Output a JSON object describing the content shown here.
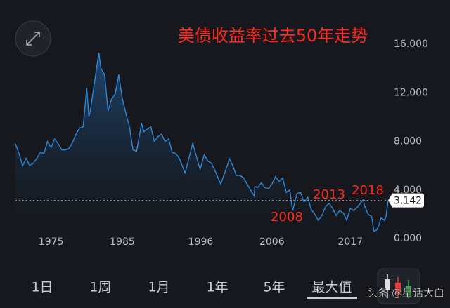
{
  "chart_data": {
    "type": "area",
    "title": "美债收益率过去50年走势",
    "color": "#2f86d6",
    "grid": false,
    "x": [
      1970,
      1970.5,
      1971,
      1971.5,
      1972,
      1972.5,
      1973,
      1973.5,
      1974,
      1974.5,
      1975,
      1975.5,
      1976,
      1976.5,
      1977,
      1977.5,
      1978,
      1978.5,
      1979,
      1979.5,
      1980,
      1980.3,
      1980.5,
      1981,
      1981.7,
      1982,
      1982.5,
      1983,
      1983.5,
      1984,
      1984.5,
      1985,
      1985.5,
      1986,
      1986.5,
      1987,
      1987.7,
      1988,
      1988.5,
      1989,
      1989.5,
      1990,
      1990.5,
      1991,
      1991.5,
      1992,
      1992.5,
      1993,
      1993.8,
      1994,
      1994.9,
      1995,
      1995.9,
      1996.5,
      1997,
      1997.5,
      1998,
      1998.8,
      1999,
      1999.9,
      2000,
      2000.5,
      2001,
      2001.5,
      2002,
      2002.5,
      2003,
      2003.5,
      2003.6,
      2004,
      2004.5,
      2005,
      2005.5,
      2006,
      2006.5,
      2007,
      2007.5,
      2008,
      2008.5,
      2008.9,
      2009,
      2009.5,
      2010,
      2010.5,
      2011,
      2011.5,
      2012,
      2012.5,
      2013,
      2013.5,
      2014,
      2014.5,
      2015,
      2015.5,
      2016,
      2016.5,
      2017,
      2017.5,
      2018,
      2018.8,
      2019,
      2019.5,
      2020,
      2020.3,
      2020.7,
      2021,
      2021.3,
      2021.8,
      2022,
      2022.3
    ],
    "values": [
      7.8,
      7.0,
      6.0,
      6.6,
      6.0,
      6.2,
      6.6,
      7.1,
      7.0,
      8.0,
      7.5,
      8.2,
      7.8,
      7.3,
      7.3,
      7.4,
      7.9,
      8.6,
      9.1,
      9.2,
      12.4,
      10.0,
      10.5,
      12.5,
      15.3,
      14.0,
      13.5,
      10.5,
      11.5,
      11.9,
      13.5,
      11.5,
      10.3,
      9.2,
      7.3,
      7.2,
      9.5,
      8.8,
      9.0,
      9.2,
      8.0,
      8.4,
      8.6,
      8.0,
      8.2,
      7.1,
      7.0,
      6.6,
      5.4,
      5.8,
      7.9,
      7.6,
      5.7,
      6.9,
      6.4,
      6.2,
      5.6,
      4.5,
      4.8,
      6.3,
      6.6,
      6.0,
      5.2,
      5.2,
      5.0,
      4.5,
      4.0,
      3.5,
      4.3,
      4.2,
      4.6,
      4.2,
      4.1,
      4.5,
      5.1,
      4.7,
      5.0,
      3.8,
      4.0,
      2.3,
      2.5,
      3.7,
      3.8,
      3.0,
      3.4,
      2.4,
      2.0,
      1.5,
      1.9,
      2.6,
      2.9,
      2.5,
      1.9,
      2.3,
      2.1,
      1.5,
      2.5,
      2.3,
      2.6,
      3.2,
      2.7,
      2.0,
      1.8,
      0.6,
      0.7,
      1.1,
      1.7,
      1.5,
      1.8,
      3.142
    ],
    "xlim": [
      1970,
      2022.3
    ],
    "xticks": [
      1975,
      1985,
      1996,
      2006,
      2017
    ],
    "ylim": [
      0,
      16
    ],
    "yticks": [
      {
        "value": 0,
        "label": "0.000"
      },
      {
        "value": 4,
        "label": "4.000"
      },
      {
        "value": 8,
        "label": "8.000"
      },
      {
        "value": 12,
        "label": "12.000"
      },
      {
        "value": 16,
        "label": "16.000"
      }
    ],
    "annotations": [
      "2008",
      "2013",
      "2018"
    ]
  },
  "ui": {
    "tabs": [
      "1日",
      "1周",
      "1月",
      "1年",
      "5年",
      "最大值"
    ],
    "active_tab": 5,
    "watermark": "头条 @星话大白"
  }
}
